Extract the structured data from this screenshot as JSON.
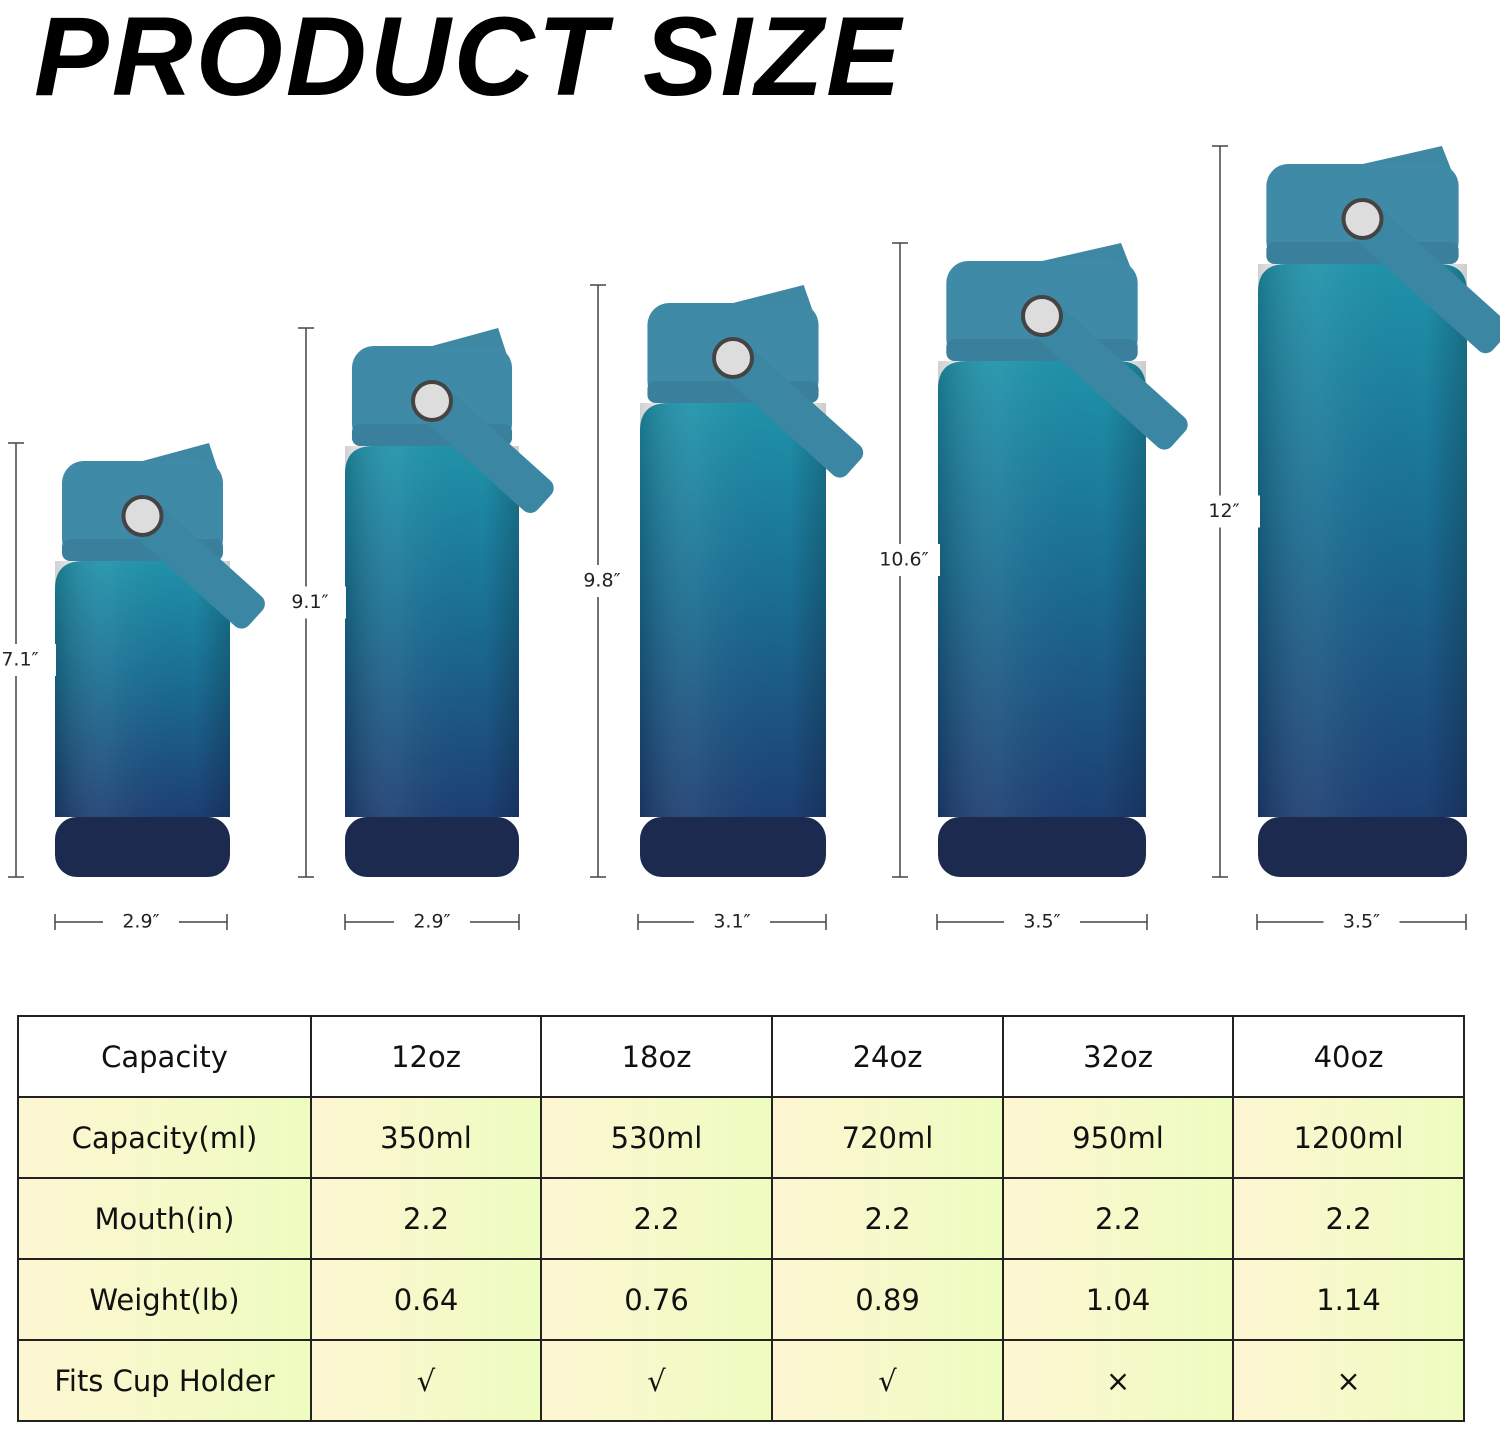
{
  "title": "PRODUCT SIZE",
  "bottles": [
    {
      "height": "7.1″",
      "width": "2.9″"
    },
    {
      "height": "9.1″",
      "width": "2.9″"
    },
    {
      "height": "9.8″",
      "width": "3.1″"
    },
    {
      "height": "10.6″",
      "width": "3.5″"
    },
    {
      "height": "12″",
      "width": "3.5″"
    }
  ],
  "table": {
    "header": [
      "Capacity",
      "12oz",
      "18oz",
      "24oz",
      "32oz",
      "40oz"
    ],
    "rows": [
      [
        "Capacity(ml)",
        "350ml",
        "530ml",
        "720ml",
        "950ml",
        "1200ml"
      ],
      [
        "Mouth(in)",
        "2.2",
        "2.2",
        "2.2",
        "2.2",
        "2.2"
      ],
      [
        "Weight(lb)",
        "0.64",
        "0.76",
        "0.89",
        "1.04",
        "1.14"
      ],
      [
        "Fits Cup Holder",
        "√",
        "√",
        "√",
        "×",
        "×"
      ]
    ]
  }
}
